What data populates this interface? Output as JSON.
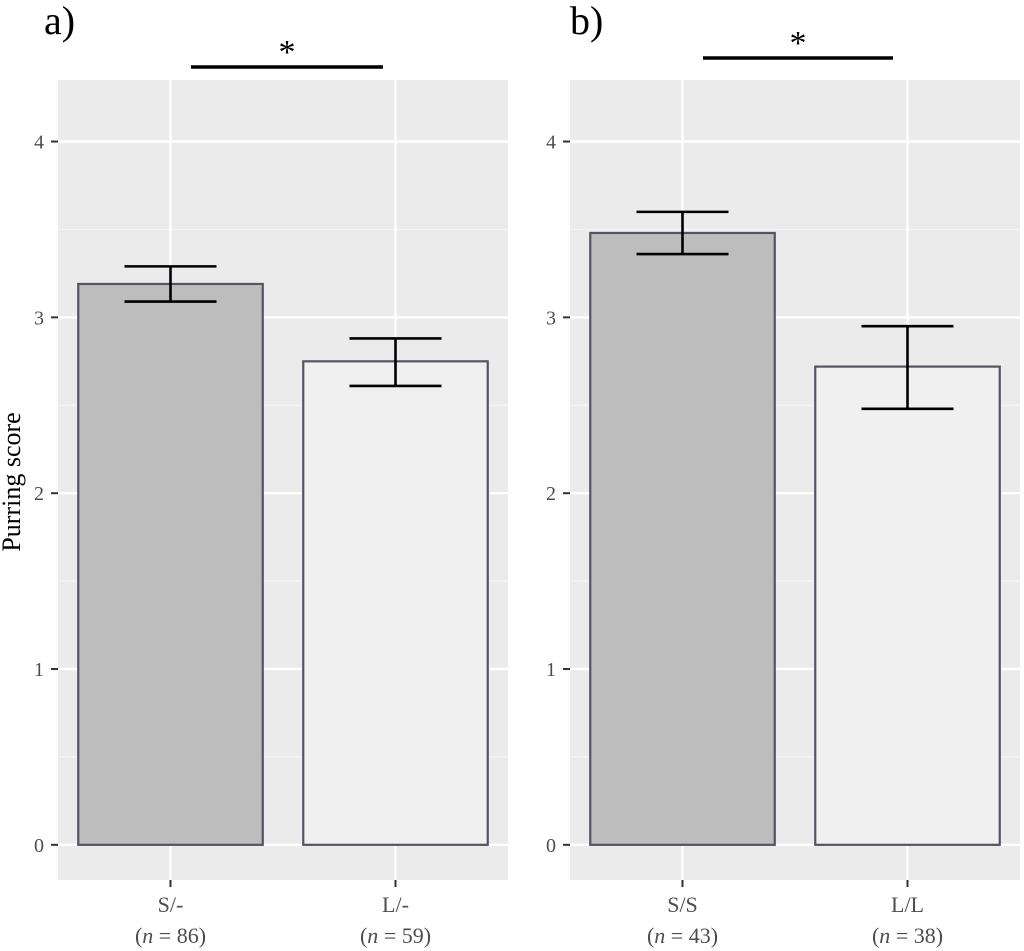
{
  "figure": {
    "ylabel": "Purring score",
    "colors": {
      "panel_bg": "#ebebeb",
      "grid_major": "#ffffff",
      "grid_minor": "#f5f5f5",
      "bar_dark": "#bdbdbd",
      "bar_light": "#f0f0f0",
      "bar_outline": "#555560",
      "tick_text": "#4d4d4d",
      "errorbar": "#000000"
    }
  },
  "chart_data": [
    {
      "type": "bar",
      "panel_label": "a)",
      "categories": [
        "S/-",
        "L/-"
      ],
      "category_n": [
        "86",
        "59"
      ],
      "values": [
        3.19,
        2.75
      ],
      "error_low": [
        3.09,
        2.61
      ],
      "error_high": [
        3.29,
        2.88
      ],
      "bar_colors": [
        "#bdbdbd",
        "#f0f0f0"
      ],
      "ylim": [
        -0.2,
        4.35
      ],
      "yticks": [
        0,
        1,
        2,
        3,
        4
      ],
      "ylabel": "Purring score",
      "significance": "*",
      "grid": true
    },
    {
      "type": "bar",
      "panel_label": "b)",
      "categories": [
        "S/S",
        "L/L"
      ],
      "category_n": [
        "43",
        "38"
      ],
      "values": [
        3.48,
        2.72
      ],
      "error_low": [
        3.36,
        2.48
      ],
      "error_high": [
        3.6,
        2.95
      ],
      "bar_colors": [
        "#bdbdbd",
        "#f0f0f0"
      ],
      "ylim": [
        -0.2,
        4.35
      ],
      "yticks": [
        0,
        1,
        2,
        3,
        4
      ],
      "significance": "*",
      "grid": true
    }
  ]
}
